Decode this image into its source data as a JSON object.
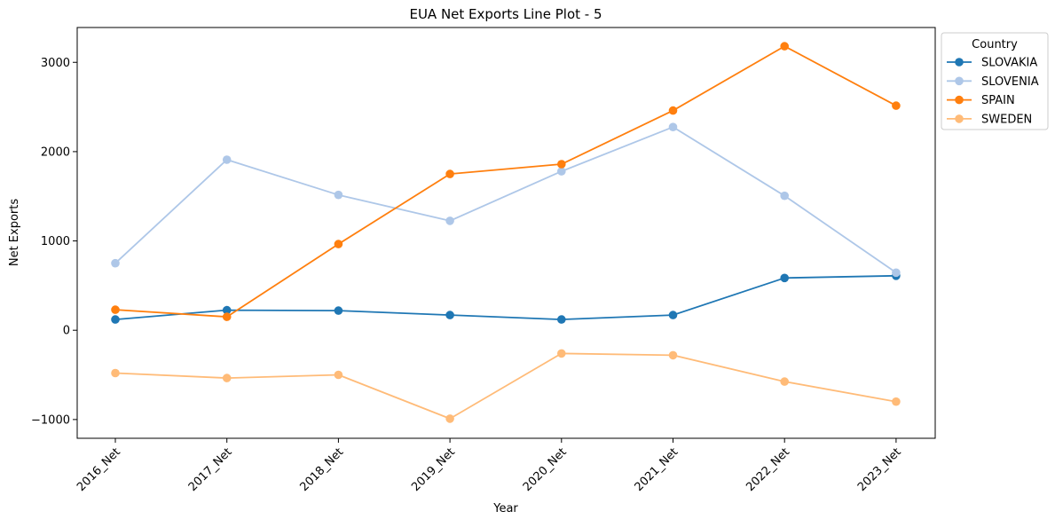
{
  "chart_data": {
    "type": "line",
    "title": "EUA Net Exports Line Plot - 5",
    "xlabel": "Year",
    "ylabel": "Net Exports",
    "categories": [
      "2016_Net",
      "2017_Net",
      "2018_Net",
      "2019_Net",
      "2020_Net",
      "2021_Net",
      "2022_Net",
      "2023_Net"
    ],
    "ylim": [
      -1210,
      3390
    ],
    "yticks": [
      -1000,
      0,
      1000,
      2000,
      3000
    ],
    "ytick_labels": [
      "−1000",
      "0",
      "1000",
      "2000",
      "3000"
    ],
    "grid": false,
    "legend": {
      "title": "Country",
      "placement": "outside top-right"
    },
    "series": [
      {
        "name": "SLOVAKIA",
        "color": "#1f77b4",
        "values": [
          120,
          225,
          220,
          170,
          120,
          170,
          585,
          610
        ]
      },
      {
        "name": "SLOVENIA",
        "color": "#aec7e8",
        "values": [
          750,
          1910,
          1515,
          1225,
          1780,
          2275,
          1505,
          645
        ]
      },
      {
        "name": "SPAIN",
        "color": "#ff7f0e",
        "values": [
          230,
          150,
          965,
          1750,
          1860,
          2460,
          3180,
          2515
        ]
      },
      {
        "name": "SWEDEN",
        "color": "#ffbb78",
        "values": [
          -480,
          -535,
          -500,
          -990,
          -260,
          -280,
          -575,
          -800
        ]
      }
    ]
  }
}
